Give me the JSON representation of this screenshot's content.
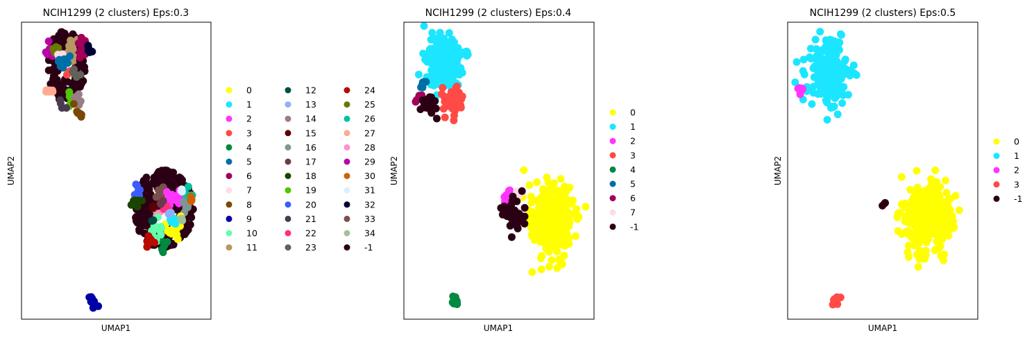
{
  "palette": {
    "0": "#ffff00",
    "1": "#1ce6ff",
    "2": "#ff34ff",
    "3": "#ff4a46",
    "4": "#008941",
    "5": "#006fa6",
    "6": "#a30059",
    "7": "#ffdbe5",
    "8": "#7a4900",
    "9": "#0000a6",
    "10": "#63ffac",
    "11": "#b79762",
    "12": "#004d43",
    "13": "#8fb0ff",
    "14": "#997d87",
    "15": "#5a0007",
    "16": "#809693",
    "17": "#6a3a4c",
    "18": "#1b4400",
    "19": "#4fc601",
    "20": "#3b5dff",
    "21": "#4a3b53",
    "22": "#ff2f80",
    "23": "#61615a",
    "24": "#ba0900",
    "25": "#6b7900",
    "26": "#00c2a0",
    "27": "#ffaa92",
    "28": "#ff90c9",
    "29": "#b903aa",
    "30": "#d16100",
    "31": "#ddefff",
    "32": "#000035",
    "33": "#7b4f4b",
    "34": "#a1c299",
    "-1": "#2c0014"
  },
  "chart_data": [
    {
      "type": "scatter",
      "title": "NCIH1299 (2 clusters) Eps:0.3",
      "xlabel": "UMAP1",
      "ylabel": "UMAP2",
      "legend_columns": 3,
      "legend_placement": "right",
      "legend": [
        "0",
        "1",
        "2",
        "3",
        "4",
        "5",
        "6",
        "7",
        "8",
        "9",
        "10",
        "11",
        "12",
        "13",
        "14",
        "15",
        "16",
        "17",
        "18",
        "19",
        "20",
        "21",
        "22",
        "23",
        "24",
        "25",
        "26",
        "27",
        "28",
        "29",
        "30",
        "31",
        "32",
        "33",
        "34",
        "-1"
      ],
      "groups": [
        {
          "name": "-1",
          "cx": 2.8,
          "cy": 8.5,
          "sx": 1.1,
          "sy": 1.1,
          "n": 150,
          "shape": "ring"
        },
        {
          "name": "-1",
          "cx": 9.0,
          "cy": 3.7,
          "sx": 1.7,
          "sy": 1.2,
          "n": 260,
          "shape": "ring"
        },
        {
          "name": "11",
          "cx": 3.2,
          "cy": 9.1,
          "sx": 0.45,
          "sy": 0.3,
          "n": 18
        },
        {
          "name": "6",
          "cx": 3.8,
          "cy": 9.1,
          "sx": 0.3,
          "sy": 0.3,
          "n": 12
        },
        {
          "name": "29",
          "cx": 1.8,
          "cy": 9.0,
          "sx": 0.25,
          "sy": 0.2,
          "n": 8
        },
        {
          "name": "25",
          "cx": 2.2,
          "cy": 9.0,
          "sx": 0.25,
          "sy": 0.2,
          "n": 8
        },
        {
          "name": "32",
          "cx": 4.3,
          "cy": 9.05,
          "sx": 0.2,
          "sy": 0.15,
          "n": 6
        },
        {
          "name": "7",
          "cx": 2.5,
          "cy": 8.9,
          "sx": 0.2,
          "sy": 0.15,
          "n": 6
        },
        {
          "name": "5",
          "cx": 2.7,
          "cy": 8.6,
          "sx": 0.35,
          "sy": 0.2,
          "n": 10
        },
        {
          "name": "3",
          "cx": 3.0,
          "cy": 8.3,
          "sx": 0.2,
          "sy": 0.2,
          "n": 6
        },
        {
          "name": "23",
          "cx": 3.5,
          "cy": 8.3,
          "sx": 0.2,
          "sy": 0.15,
          "n": 6
        },
        {
          "name": "27",
          "cx": 1.7,
          "cy": 7.7,
          "sx": 0.2,
          "sy": 0.15,
          "n": 6
        },
        {
          "name": "19",
          "cx": 3.2,
          "cy": 7.4,
          "sx": 0.25,
          "sy": 0.25,
          "n": 8
        },
        {
          "name": "14",
          "cx": 3.6,
          "cy": 7.4,
          "sx": 0.25,
          "sy": 0.2,
          "n": 8
        },
        {
          "name": "8",
          "cx": 3.6,
          "cy": 7.0,
          "sx": 0.25,
          "sy": 0.15,
          "n": 8
        },
        {
          "name": "21",
          "cx": 2.6,
          "cy": 7.2,
          "sx": 0.2,
          "sy": 0.15,
          "n": 5
        },
        {
          "name": "9",
          "cx": 4.5,
          "cy": 0.6,
          "sx": 0.2,
          "sy": 0.15,
          "n": 12
        },
        {
          "name": "20",
          "cx": 7.4,
          "cy": 4.3,
          "sx": 0.25,
          "sy": 0.25,
          "n": 8
        },
        {
          "name": "18",
          "cx": 7.3,
          "cy": 4.0,
          "sx": 0.2,
          "sy": 0.2,
          "n": 8
        },
        {
          "name": "33",
          "cx": 8.9,
          "cy": 4.2,
          "sx": 0.3,
          "sy": 0.2,
          "n": 10
        },
        {
          "name": "2",
          "cx": 9.6,
          "cy": 4.1,
          "sx": 0.4,
          "sy": 0.25,
          "n": 16
        },
        {
          "name": "26",
          "cx": 10.5,
          "cy": 4.2,
          "sx": 0.25,
          "sy": 0.2,
          "n": 8
        },
        {
          "name": "30",
          "cx": 10.7,
          "cy": 3.9,
          "sx": 0.15,
          "sy": 0.15,
          "n": 5
        },
        {
          "name": "16",
          "cx": 10.4,
          "cy": 3.7,
          "sx": 0.2,
          "sy": 0.2,
          "n": 6
        },
        {
          "name": "28",
          "cx": 8.7,
          "cy": 3.5,
          "sx": 0.2,
          "sy": 0.15,
          "n": 5
        },
        {
          "name": "22",
          "cx": 9.2,
          "cy": 3.7,
          "sx": 0.2,
          "sy": 0.15,
          "n": 5
        },
        {
          "name": "0",
          "cx": 9.7,
          "cy": 3.1,
          "sx": 0.5,
          "sy": 0.35,
          "n": 20
        },
        {
          "name": "1",
          "cx": 9.6,
          "cy": 3.3,
          "sx": 0.25,
          "sy": 0.15,
          "n": 5
        },
        {
          "name": "10",
          "cx": 8.6,
          "cy": 3.0,
          "sx": 0.35,
          "sy": 0.3,
          "n": 14
        },
        {
          "name": "24",
          "cx": 8.1,
          "cy": 2.6,
          "sx": 0.2,
          "sy": 0.25,
          "n": 8
        },
        {
          "name": "4",
          "cx": 8.9,
          "cy": 2.4,
          "sx": 0.2,
          "sy": 0.3,
          "n": 8
        },
        {
          "name": "13",
          "cx": 9.4,
          "cy": 3.6,
          "sx": 0.15,
          "sy": 0.1,
          "n": 3
        },
        {
          "name": "12",
          "cx": 8.3,
          "cy": 3.3,
          "sx": 0.15,
          "sy": 0.1,
          "n": 3
        },
        {
          "name": "15",
          "cx": 8.4,
          "cy": 3.8,
          "sx": 0.15,
          "sy": 0.1,
          "n": 3
        },
        {
          "name": "17",
          "cx": 8.8,
          "cy": 3.9,
          "sx": 0.15,
          "sy": 0.1,
          "n": 3
        },
        {
          "name": "31",
          "cx": 10.1,
          "cy": 4.3,
          "sx": 0.15,
          "sy": 0.1,
          "n": 3
        },
        {
          "name": "34",
          "cx": 10.2,
          "cy": 3.4,
          "sx": 0.15,
          "sy": 0.1,
          "n": 3
        }
      ]
    },
    {
      "type": "scatter",
      "title": "NCIH1299 (2 clusters) Eps:0.4",
      "xlabel": "UMAP1",
      "ylabel": "UMAP2",
      "legend_columns": 1,
      "legend_placement": "right",
      "legend": [
        "0",
        "1",
        "2",
        "3",
        "4",
        "5",
        "6",
        "7",
        "-1"
      ],
      "groups": [
        {
          "name": "1",
          "cx": 2.6,
          "cy": 8.6,
          "sx": 1.0,
          "sy": 0.75,
          "n": 170
        },
        {
          "name": "3",
          "cx": 3.1,
          "cy": 7.3,
          "sx": 0.55,
          "sy": 0.45,
          "n": 55
        },
        {
          "name": "5",
          "cx": 1.2,
          "cy": 7.9,
          "sx": 0.2,
          "sy": 0.15,
          "n": 8
        },
        {
          "name": "6",
          "cx": 1.0,
          "cy": 7.5,
          "sx": 0.2,
          "sy": 0.2,
          "n": 8
        },
        {
          "name": "-1",
          "cx": 1.6,
          "cy": 7.3,
          "sx": 0.5,
          "sy": 0.35,
          "n": 20
        },
        {
          "name": "0",
          "cx": 9.3,
          "cy": 3.3,
          "sx": 1.1,
          "sy": 1.0,
          "n": 320
        },
        {
          "name": "2",
          "cx": 6.5,
          "cy": 4.0,
          "sx": 0.3,
          "sy": 0.3,
          "n": 14
        },
        {
          "name": "7",
          "cx": 7.2,
          "cy": 4.3,
          "sx": 0.2,
          "sy": 0.15,
          "n": 5
        },
        {
          "name": "-1",
          "cx": 7.0,
          "cy": 3.4,
          "sx": 0.6,
          "sy": 0.7,
          "n": 40
        },
        {
          "name": "4",
          "cx": 3.2,
          "cy": 0.6,
          "sx": 0.2,
          "sy": 0.15,
          "n": 12
        }
      ]
    },
    {
      "type": "scatter",
      "title": "NCIH1299 (2 clusters) Eps:0.5",
      "xlabel": "UMAP1",
      "ylabel": "UMAP2",
      "legend_columns": 1,
      "legend_placement": "right",
      "legend": [
        "0",
        "1",
        "2",
        "3",
        "-1"
      ],
      "groups": [
        {
          "name": "1",
          "cx": 2.6,
          "cy": 8.2,
          "sx": 1.0,
          "sy": 1.0,
          "n": 220
        },
        {
          "name": "2",
          "cx": 0.8,
          "cy": 7.7,
          "sx": 0.15,
          "sy": 0.2,
          "n": 8
        },
        {
          "name": "0",
          "cx": 8.9,
          "cy": 3.4,
          "sx": 1.3,
          "sy": 1.0,
          "n": 360
        },
        {
          "name": "-1",
          "cx": 6.1,
          "cy": 3.9,
          "sx": 0.2,
          "sy": 0.06,
          "n": 3
        },
        {
          "name": "3",
          "cx": 3.1,
          "cy": 0.6,
          "sx": 0.2,
          "sy": 0.15,
          "n": 12
        }
      ]
    }
  ]
}
